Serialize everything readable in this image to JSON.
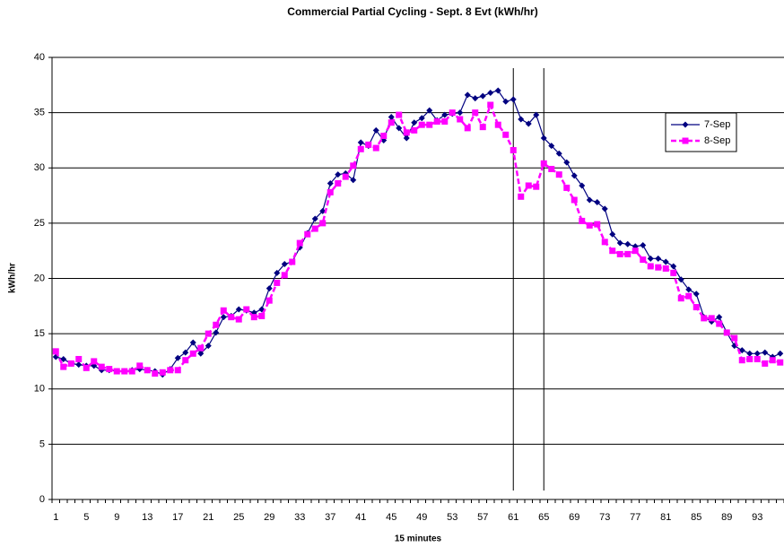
{
  "chart_data": {
    "type": "line",
    "title": "Commercial Partial Cycling - Sept. 8 Evt (kWh/hr)",
    "x_label": "15 minutes",
    "y_label": "kWh/hr",
    "categories": [
      1,
      null,
      null,
      null,
      5,
      null,
      null,
      null,
      9,
      null,
      null,
      null,
      13,
      null,
      null,
      null,
      17,
      null,
      null,
      null,
      21,
      null,
      null,
      null,
      25,
      null,
      null,
      null,
      29,
      null,
      null,
      null,
      33,
      null,
      null,
      null,
      37,
      null,
      null,
      null,
      41,
      null,
      null,
      null,
      45,
      null,
      null,
      null,
      49,
      null,
      null,
      null,
      53,
      null,
      null,
      null,
      57,
      null,
      null,
      null,
      61,
      null,
      null,
      null,
      65,
      null,
      null,
      null,
      69,
      null,
      null,
      null,
      73,
      null,
      null,
      null,
      77,
      null,
      null,
      null,
      81,
      null,
      null,
      null,
      85,
      null,
      null,
      null,
      89,
      null,
      null,
      null,
      93,
      null,
      null,
      null
    ],
    "series": [
      {
        "name": "7-Sep",
        "color": "#000080",
        "marker": "diamond",
        "line_style": "solid",
        "values": [
          12.9,
          12.7,
          12.3,
          12.2,
          12.1,
          12.1,
          11.7,
          11.7,
          11.6,
          11.6,
          11.7,
          11.8,
          11.7,
          11.6,
          11.3,
          11.8,
          12.8,
          13.3,
          14.2,
          13.2,
          13.9,
          15.1,
          16.5,
          16.6,
          17.2,
          17.1,
          16.9,
          17.2,
          19.1,
          20.5,
          21.3,
          21.5,
          22.8,
          24.1,
          25.4,
          26.1,
          28.6,
          29.4,
          29.5,
          28.9,
          32.3,
          32.0,
          33.4,
          32.5,
          34.6,
          33.6,
          32.7,
          34.1,
          34.5,
          35.2,
          34.3,
          34.8,
          34.9,
          35.0,
          36.6,
          36.3,
          36.5,
          36.8,
          37.0,
          36.0,
          36.2,
          34.4,
          34.0,
          34.8,
          32.7,
          32.0,
          31.3,
          30.5,
          29.3,
          28.4,
          27.1,
          26.9,
          26.3,
          24.0,
          23.2,
          23.1,
          22.9,
          23.0,
          21.8,
          21.8,
          21.5,
          21.1,
          19.9,
          19.0,
          18.6,
          16.5,
          16.1,
          16.5,
          15.1,
          13.9,
          13.5,
          13.2,
          13.2,
          13.3,
          12.9,
          13.2
        ]
      },
      {
        "name": "8-Sep",
        "color": "#ff00ff",
        "marker": "square",
        "line_style": "dashed",
        "values": [
          13.4,
          12.0,
          12.3,
          12.7,
          11.9,
          12.5,
          12.0,
          11.8,
          11.6,
          11.6,
          11.6,
          12.1,
          11.7,
          11.4,
          11.5,
          11.7,
          11.7,
          12.6,
          13.2,
          13.7,
          15.0,
          15.8,
          17.1,
          16.5,
          16.3,
          17.2,
          16.5,
          16.6,
          18.0,
          19.6,
          20.3,
          21.5,
          23.2,
          24.0,
          24.5,
          25.0,
          27.8,
          28.6,
          29.2,
          30.2,
          31.7,
          32.1,
          31.8,
          32.9,
          34.1,
          34.8,
          33.2,
          33.4,
          33.9,
          33.9,
          34.2,
          34.2,
          35.0,
          34.4,
          33.6,
          35.0,
          33.7,
          35.7,
          33.9,
          33.0,
          31.6,
          27.4,
          28.4,
          28.3,
          30.4,
          29.9,
          29.4,
          28.2,
          27.1,
          25.2,
          24.8,
          24.9,
          23.3,
          22.5,
          22.2,
          22.2,
          22.5,
          21.7,
          21.1,
          21.0,
          20.9,
          20.5,
          18.2,
          18.4,
          17.4,
          16.4,
          16.4,
          15.9,
          15.1,
          14.6,
          12.6,
          12.7,
          12.7,
          12.3,
          12.6,
          12.4
        ]
      }
    ],
    "event_lines": [
      61,
      65
    ],
    "ylim": [
      0,
      40
    ],
    "yticks": [
      0,
      5,
      10,
      15,
      20,
      25,
      30,
      35,
      40
    ],
    "grid": true,
    "legend": "upper right"
  }
}
